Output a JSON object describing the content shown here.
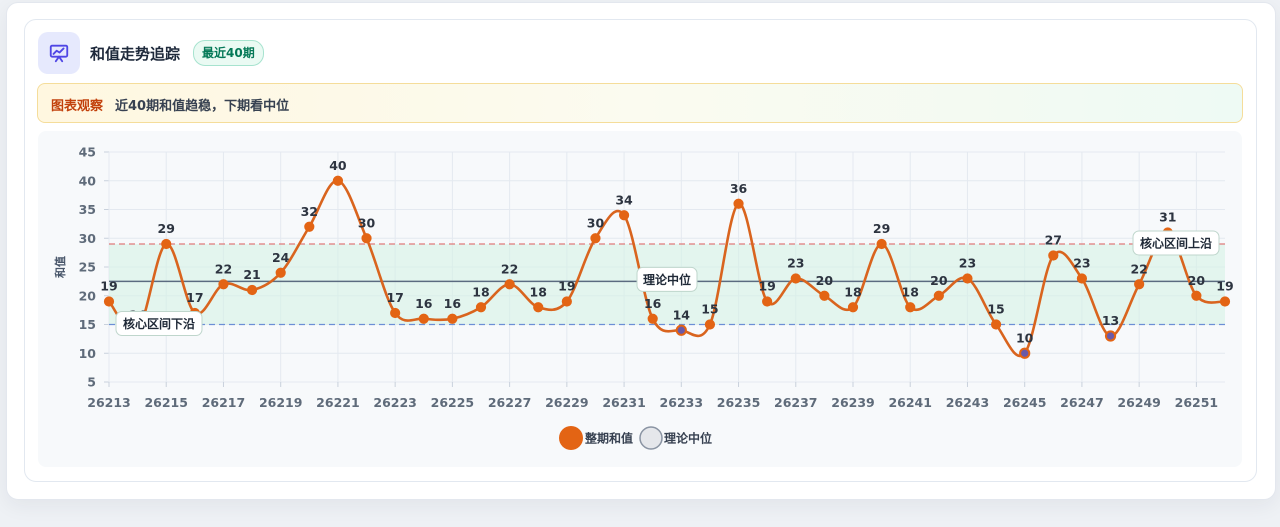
{
  "header": {
    "title": "和值走势追踪",
    "badge": "最近40期",
    "icon": "presentation-chart-icon"
  },
  "note": {
    "tag": "图表观察",
    "text": "近40期和值趋稳，下期看中位"
  },
  "colors": {
    "accent": "#e36414",
    "line": "#d9641e",
    "band": "#d6f1e6",
    "upper_line": "#e07b7b",
    "lower_line": "#6b8fd6",
    "median_line": "#5b6b80"
  },
  "chart_data": {
    "type": "line",
    "x": [
      26213,
      26214,
      26215,
      26216,
      26217,
      26218,
      26219,
      26220,
      26221,
      26222,
      26223,
      26224,
      26225,
      26226,
      26227,
      26228,
      26229,
      26230,
      26231,
      26232,
      26233,
      26234,
      26235,
      26236,
      26237,
      26238,
      26239,
      26240,
      26241,
      26242,
      26243,
      26244,
      26245,
      26246,
      26247,
      26248,
      26249,
      26250,
      26251,
      26252
    ],
    "x_tick_labels": [
      "26213",
      "26215",
      "26217",
      "26219",
      "26221",
      "26223",
      "26225",
      "26227",
      "26229",
      "26231",
      "26233",
      "26235",
      "26237",
      "26239",
      "26241",
      "26243",
      "26245",
      "26247",
      "26249",
      "26251"
    ],
    "series": [
      {
        "name": "整期和值",
        "values": [
          19,
          14,
          29,
          17,
          22,
          21,
          24,
          32,
          40,
          30,
          17,
          16,
          16,
          18,
          22,
          18,
          19,
          30,
          34,
          16,
          14,
          15,
          36,
          19,
          23,
          20,
          18,
          29,
          18,
          20,
          23,
          15,
          10,
          27,
          23,
          13,
          22,
          31,
          20,
          19
        ]
      }
    ],
    "ylabel": "和值",
    "ylim": [
      5,
      45
    ],
    "yticks": [
      5,
      10,
      15,
      20,
      25,
      30,
      35,
      40,
      45
    ],
    "reference_lines": {
      "median": {
        "value": 22.5,
        "label": "理论中位"
      },
      "band_upper": {
        "value": 29,
        "label": "核心区间上沿"
      },
      "band_lower": {
        "value": 15,
        "label": "核心区间下沿"
      }
    },
    "legend": {
      "position": "bottom",
      "items": [
        "整期和值",
        "理论中位"
      ]
    },
    "grid": true
  }
}
